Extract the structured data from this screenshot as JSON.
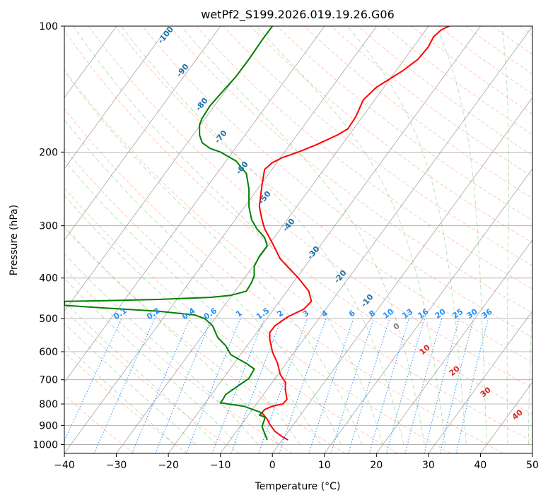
{
  "chart_data": {
    "type": "line",
    "title": "wetPf2_S199.2026.019.19.26.G06",
    "xlabel": "Temperature (°C)",
    "ylabel": "Pressure (hPa)",
    "xlim": [
      -40,
      50
    ],
    "ylim": [
      1050,
      100
    ],
    "y_scale": "log",
    "grid": true,
    "x_ticks": [
      "−40",
      "−30",
      "−20",
      "−10",
      "0",
      "10",
      "20",
      "30",
      "40",
      "50"
    ],
    "y_ticks": [
      "100",
      "200",
      "300",
      "400",
      "500",
      "600",
      "700",
      "800",
      "900",
      "1000"
    ],
    "series": [
      {
        "color": "#ff0000",
        "style": "solid",
        "points": [
          [
            3.0,
            975
          ],
          [
            2.0,
            960
          ],
          [
            0.5,
            930
          ],
          [
            -0.5,
            895
          ],
          [
            -1.0,
            870
          ],
          [
            -2.0,
            840
          ],
          [
            -1.5,
            825
          ],
          [
            0.0,
            810
          ],
          [
            2.0,
            800
          ],
          [
            2.8,
            780
          ],
          [
            2.5,
            740
          ],
          [
            2.5,
            710
          ],
          [
            1.5,
            680
          ],
          [
            1.0,
            640
          ],
          [
            0.0,
            600
          ],
          [
            -0.5,
            560
          ],
          [
            -0.5,
            540
          ],
          [
            0.5,
            520
          ],
          [
            3.0,
            495
          ],
          [
            6.0,
            475
          ],
          [
            7.5,
            455
          ],
          [
            7.0,
            430
          ],
          [
            5.0,
            400
          ],
          [
            1.5,
            360
          ],
          [
            0.0,
            330
          ],
          [
            -1.5,
            305
          ],
          [
            -2.0,
            290
          ],
          [
            -2.5,
            270
          ],
          [
            -2.0,
            240
          ],
          [
            -1.5,
            220
          ],
          [
            0,
            212
          ],
          [
            2.0,
            206
          ],
          [
            5.0,
            200
          ],
          [
            8.5,
            192
          ],
          [
            12.5,
            182
          ],
          [
            14.5,
            176
          ],
          [
            16.0,
            165
          ],
          [
            17.5,
            150
          ],
          [
            20.0,
            140
          ],
          [
            25.0,
            128
          ],
          [
            28.0,
            120
          ],
          [
            30.0,
            112
          ],
          [
            31.0,
            106
          ],
          [
            32.5,
            102
          ],
          [
            34.0,
            100
          ]
        ]
      },
      {
        "color": "#008000",
        "style": "solid",
        "points": [
          [
            -1.0,
            975
          ],
          [
            -1.5,
            940
          ],
          [
            -2.0,
            905
          ],
          [
            -1.5,
            870
          ],
          [
            -1.5,
            860
          ],
          [
            -2.5,
            850
          ],
          [
            -2.0,
            840
          ],
          [
            -5.5,
            810
          ],
          [
            -8.5,
            800
          ],
          [
            -10.0,
            795
          ],
          [
            -9.5,
            780
          ],
          [
            -9.0,
            760
          ],
          [
            -7.0,
            730
          ],
          [
            -4.5,
            695
          ],
          [
            -3.5,
            660
          ],
          [
            -5.0,
            640
          ],
          [
            -8.0,
            610
          ],
          [
            -9.0,
            580
          ],
          [
            -10.5,
            555
          ],
          [
            -11.5,
            520
          ],
          [
            -13.0,
            500
          ],
          [
            -15.0,
            490
          ],
          [
            -22.0,
            480
          ],
          [
            -32.0,
            472
          ],
          [
            -40.0,
            465
          ],
          [
            -40,
            455
          ],
          [
            -32.0,
            453
          ],
          [
            -22.0,
            450
          ],
          [
            -12.0,
            445
          ],
          [
            -8.0,
            440
          ],
          [
            -5.0,
            430
          ],
          [
            -4.0,
            410
          ],
          [
            -3.5,
            395
          ],
          [
            -3.5,
            375
          ],
          [
            -2.5,
            355
          ],
          [
            -1.0,
            335
          ],
          [
            -1.5,
            320
          ],
          [
            -3.0,
            305
          ],
          [
            -4.0,
            290
          ],
          [
            -4.5,
            270
          ],
          [
            -4.5,
            245
          ],
          [
            -5.0,
            225
          ],
          [
            -7.0,
            210
          ],
          [
            -10.0,
            200
          ],
          [
            -12.0,
            196
          ],
          [
            -13.5,
            190
          ],
          [
            -14.0,
            182
          ],
          [
            -14.0,
            172
          ],
          [
            -13.5,
            166
          ],
          [
            -12.0,
            155
          ],
          [
            -9.5,
            143
          ],
          [
            -7.0,
            132
          ],
          [
            -4.5,
            120
          ],
          [
            -2.0,
            108
          ],
          [
            0.0,
            100
          ]
        ]
      }
    ],
    "dry_adiabat_labels": [
      "-100",
      "-90",
      "-80",
      "-70",
      "-60",
      "-50",
      "-40",
      "-30",
      "-20",
      "-10"
    ],
    "mixing_ratio_labels": [
      "0.1",
      "0.2",
      "0.4",
      "0.6",
      "1",
      "1.5",
      "2",
      "3",
      "4",
      "6",
      "8",
      "10",
      "13",
      "16",
      "20",
      "25",
      "30",
      "36"
    ],
    "moist_adiabat_labels": [
      "0",
      "10",
      "20",
      "30",
      "40"
    ],
    "colors": {
      "temperature": "#ff0000",
      "dewpoint": "#008000",
      "dry_adiabat": "#ff7f50",
      "moist_adiabat": "#2ca02c",
      "mixing_ratio": "#1e90ff",
      "isotherm": "#808080",
      "label_dry": "#1f6fa8",
      "label_moist": "#d62728"
    }
  }
}
